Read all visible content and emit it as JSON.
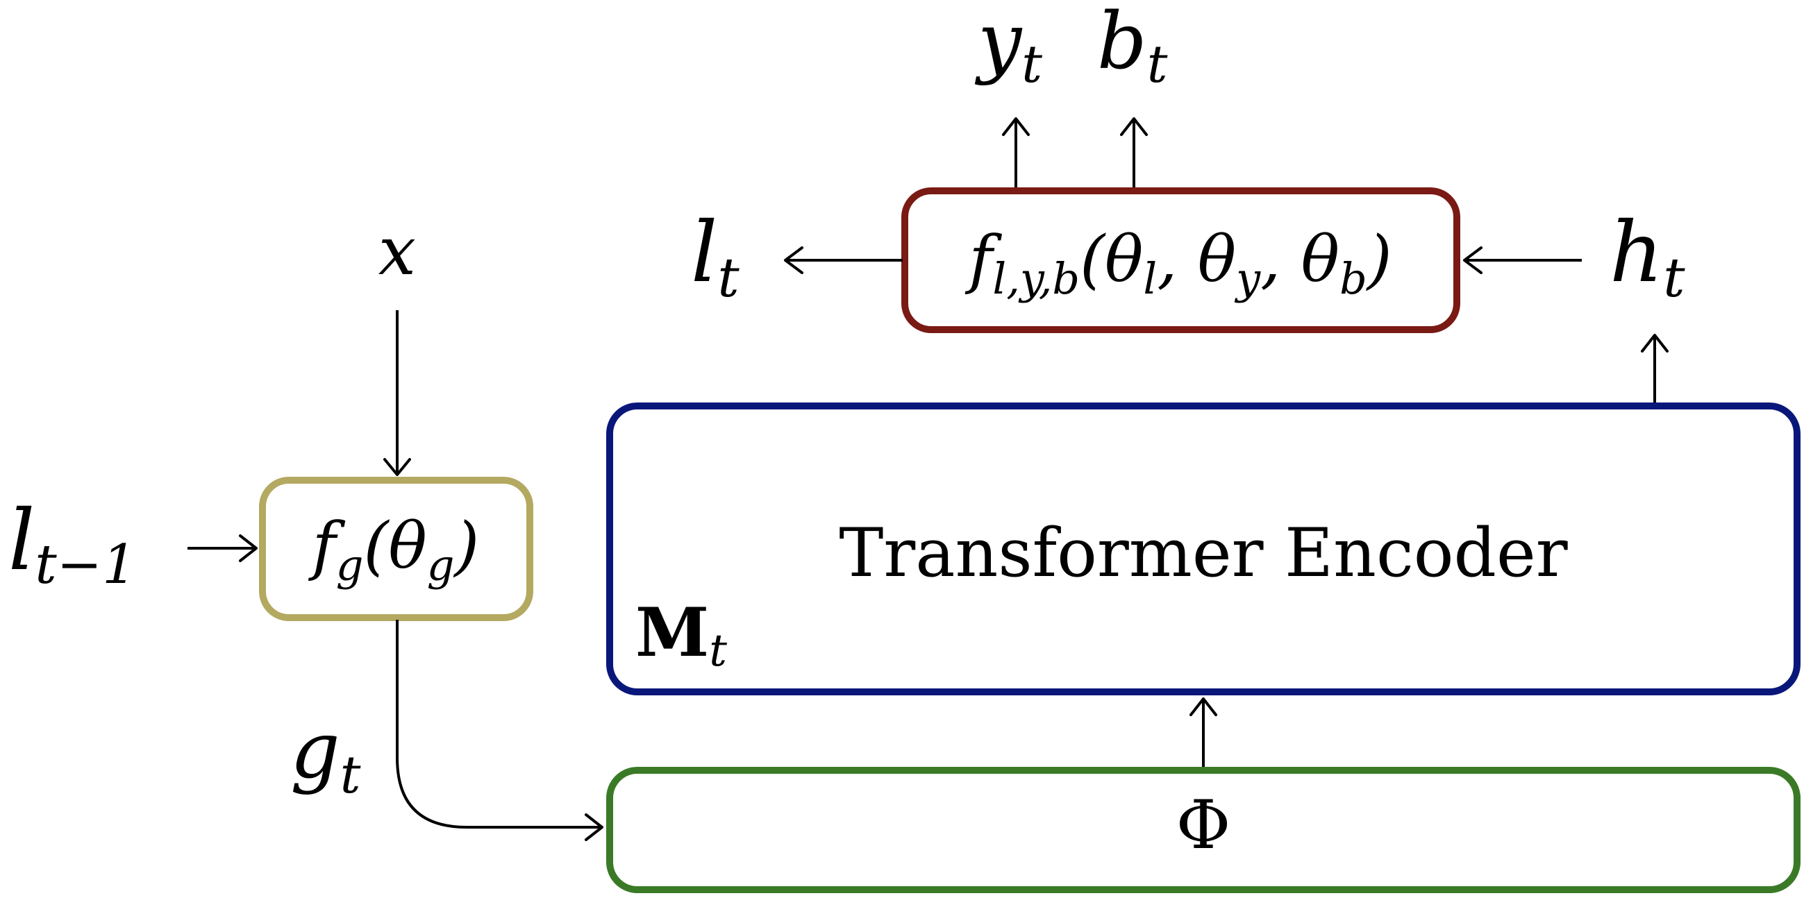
{
  "nodes": {
    "x": {
      "base": "x"
    },
    "l_prev": {
      "base": "l",
      "sub": "t−1"
    },
    "g_t": {
      "base": "g",
      "sub": "t"
    },
    "l_t": {
      "base": "l",
      "sub": "t"
    },
    "h_t": {
      "base": "h",
      "sub": "t"
    },
    "y_t": {
      "base": "y",
      "sub": "t"
    },
    "b_t": {
      "base": "b",
      "sub": "t"
    },
    "f_g": {
      "pre": "f",
      "sub": "g",
      "open": "(θ",
      "sub2": "g",
      "close": ")",
      "color": "#b3a960"
    },
    "f_lyb": {
      "pre": "f",
      "sub": "l,y,b",
      "p1": "(θ",
      "s1": "l",
      "p2": ", θ",
      "s2": "y",
      "p3": ", θ",
      "s3": "b",
      "close": ")",
      "color": "#7a1a14"
    },
    "transformer": {
      "label": "Transformer Encoder",
      "tag_base": "M",
      "tag_sub": "t",
      "color": "#0a177a"
    },
    "phi": {
      "label": "Φ",
      "color": "#3a7a27"
    }
  }
}
